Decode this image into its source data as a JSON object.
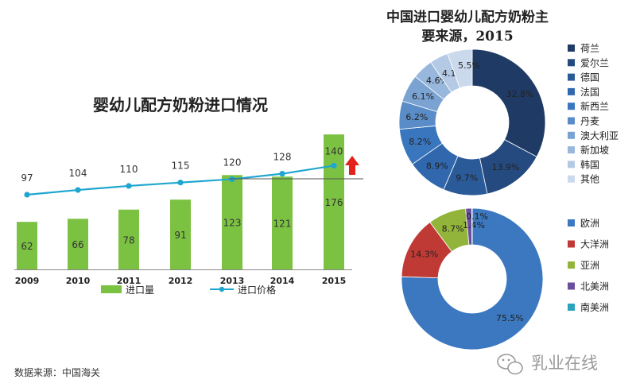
{
  "source_note": "数据来源：中国海关",
  "watermark": "乳业在线",
  "chart_data": [
    {
      "type": "bar",
      "title": "婴幼儿配方奶粉进口情况",
      "categories": [
        "2009",
        "2010",
        "2011",
        "2012",
        "2013",
        "2014",
        "2015"
      ],
      "series": [
        {
          "name": "进口量",
          "type": "bar",
          "color": "#7cc242",
          "values": [
            62,
            66,
            78,
            91,
            123,
            121,
            176
          ]
        },
        {
          "name": "进口价格",
          "type": "line",
          "color": "#1fa6cf",
          "values": [
            97,
            104,
            110,
            115,
            120,
            128,
            140
          ]
        }
      ],
      "grid": false,
      "legend": "bottom",
      "annotation_color": "#e3231b"
    },
    {
      "type": "pie",
      "title": "中国进口婴幼儿配方奶粉主要来源，2015",
      "labels": [
        "荷兰",
        "爱尔兰",
        "德国",
        "法国",
        "新西兰",
        "丹麦",
        "澳大利亚",
        "新加坡",
        "韩国",
        "其他"
      ],
      "values": [
        32.8,
        13.9,
        9.7,
        8.9,
        8.2,
        6.2,
        6.1,
        4.6,
        4.1,
        5.5
      ],
      "value_labels": [
        "32.8%",
        "13.9%",
        "9.7%",
        "8.9%",
        "8.2%",
        "6.2%",
        "6.1%",
        "4.6%",
        "4.1%",
        "5.5%"
      ],
      "colors": [
        "#1f3a64",
        "#244a7f",
        "#2b5a98",
        "#3168ad",
        "#3a76be",
        "#5a8cc7",
        "#7aa3d2",
        "#98b7dc",
        "#b3c9e4",
        "#cbd9ec"
      ],
      "legend": "right"
    },
    {
      "type": "pie",
      "labels": [
        "欧洲",
        "大洋洲",
        "亚洲",
        "北美洲",
        "南美洲"
      ],
      "values": [
        75.5,
        14.3,
        8.7,
        1.4,
        0.1
      ],
      "value_labels": [
        "75.5%",
        "14.3%",
        "8.7%",
        "1.4%",
        "0.1%"
      ],
      "colors": [
        "#3b78c0",
        "#c03a35",
        "#92b43a",
        "#6a4d9b",
        "#2aa3bd"
      ],
      "legend": "right"
    }
  ]
}
